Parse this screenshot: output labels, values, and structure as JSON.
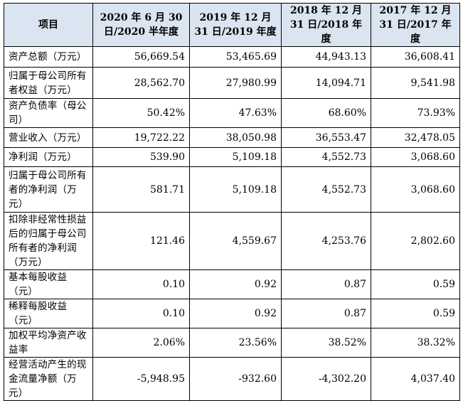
{
  "table": {
    "headers": [
      "项目",
      "2020 年 6 月 30 日/2020 半年度",
      "2019 年 12 月 31 日/2019 年度",
      "2018 年 12 月 31 日/2018 年度",
      "2017 年 12 月 31 日/2017 年度"
    ],
    "rows": [
      {
        "label": "资产总额（万元）",
        "values": [
          "56,669.54",
          "53,465.69",
          "44,943.13",
          "36,608.41"
        ]
      },
      {
        "label": "归属于母公司所有者权益（万元）",
        "values": [
          "28,562.70",
          "27,980.99",
          "14,094.71",
          "9,541.98"
        ]
      },
      {
        "label": "资产负债率（母公司）",
        "values": [
          "50.42%",
          "47.63%",
          "68.60%",
          "73.93%"
        ]
      },
      {
        "label": "营业收入（万元）",
        "values": [
          "19,722.22",
          "38,050.98",
          "36,553.47",
          "32,478.05"
        ]
      },
      {
        "label": "净利润（万元）",
        "values": [
          "539.90",
          "5,109.18",
          "4,552.73",
          "3,068.60"
        ]
      },
      {
        "label": "归属于母公司所有者的净利润（万元）",
        "values": [
          "581.71",
          "5,109.18",
          "4,552.73",
          "3,068.60"
        ]
      },
      {
        "label": "扣除非经常性损益后的归属于母公司所有者的净利润（万元）",
        "values": [
          "121.46",
          "4,559.67",
          "4,253.76",
          "2,802.60"
        ]
      },
      {
        "label": "基本每股收益（元）",
        "values": [
          "0.10",
          "0.92",
          "0.87",
          "0.59"
        ]
      },
      {
        "label": "稀释每股收益（元）",
        "values": [
          "0.10",
          "0.92",
          "0.87",
          "0.59"
        ]
      },
      {
        "label": "加权平均净资产收益率",
        "values": [
          "2.06%",
          "23.56%",
          "38.52%",
          "38.32%"
        ]
      },
      {
        "label": "经营活动产生的现金流量净额（万元）",
        "values": [
          "-5,948.95",
          "-932.60",
          "-4,302.20",
          "4,037.40"
        ]
      }
    ]
  }
}
